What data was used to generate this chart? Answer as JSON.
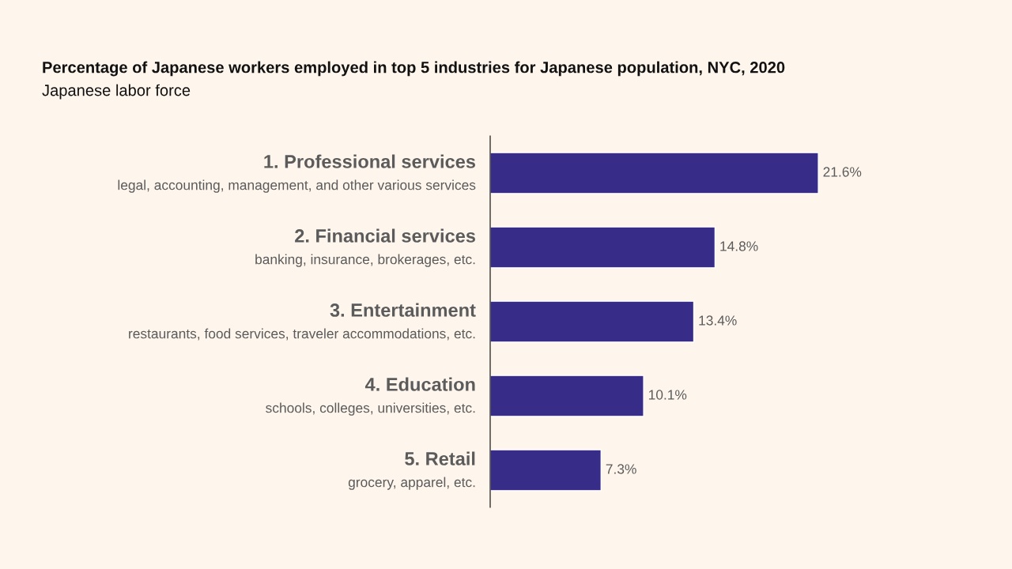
{
  "chart_data": {
    "type": "bar",
    "orientation": "horizontal",
    "title": "Percentage of Japanese workers employed in top 5 industries for Japanese population, NYC, 2020",
    "subtitle": "Japanese labor force",
    "categories": [
      "1. Professional services\nlegal, accounting, management, and other various services",
      "2. Financial services\nbanking, insurance, brokerages, etc.",
      "3. Entertainment\nrestaurants, food services, traveler accommodations, etc.",
      "4. Education\nschools, colleges, universities, etc.",
      "5. Retail\ngrocery, apparel, etc."
    ],
    "values": [
      21.6,
      14.8,
      13.4,
      10.1,
      7.3
    ],
    "value_labels": [
      "21.6%",
      "14.8%",
      "13.4%",
      "10.1%",
      "7.3%"
    ],
    "color": "#372c87"
  }
}
